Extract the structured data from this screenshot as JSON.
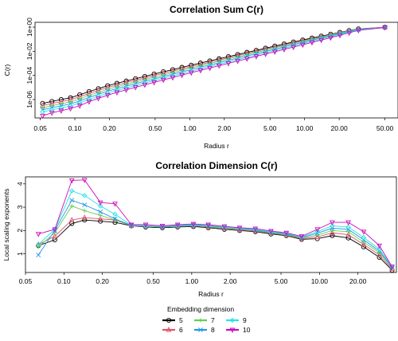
{
  "chart_data": [
    {
      "type": "line",
      "title": "Correlation Sum C(r)",
      "xlabel": "Radius r",
      "ylabel": "C(r)",
      "xscale": "log",
      "yscale": "log",
      "xlim": [
        0.045,
        65
      ],
      "ylim": [
        3e-08,
        2.5
      ],
      "x_ticks": [
        0.05,
        0.1,
        0.2,
        0.5,
        1,
        2,
        5,
        10,
        20,
        50
      ],
      "x_tick_labels": [
        "0.05",
        "0.10",
        "0.20",
        "0.50",
        "1.00",
        "2.00",
        "5.00",
        "10.00",
        "20.00",
        "50.00"
      ],
      "y_ticks": [
        1e-06,
        0.0001,
        0.01,
        1
      ],
      "y_tick_labels": [
        "1e-06",
        "1e-04",
        "1e-02",
        "1e+00"
      ],
      "x": [
        0.0524,
        0.0631,
        0.076,
        0.0916,
        0.1103,
        0.1329,
        0.1601,
        0.1929,
        0.2324,
        0.2799,
        0.3372,
        0.4062,
        0.4894,
        0.5895,
        0.7102,
        0.8555,
        1.0306,
        1.2415,
        1.4956,
        1.8017,
        2.1704,
        2.6146,
        3.1497,
        3.7943,
        4.5708,
        5.5062,
        6.633,
        7.9905,
        9.6257,
        11.5955,
        13.9686,
        16.8271,
        20.2709,
        24.4193,
        29.4167,
        50.0
      ],
      "series": [
        {
          "name": "5",
          "color": "#000000",
          "marker": "circle",
          "values": [
            4.8e-07,
            7e-07,
            1e-06,
            1.4e-06,
            2.5e-06,
            4.6e-06,
            8e-06,
            1.4e-05,
            2.2e-05,
            3.4e-05,
            5.3e-05,
            8.2e-05,
            0.00013,
            0.0002,
            0.0003,
            0.00046,
            0.0007,
            0.00106,
            0.0016,
            0.0024,
            0.0036,
            0.0054,
            0.0081,
            0.012,
            0.018,
            0.027,
            0.04,
            0.059,
            0.086,
            0.125,
            0.18,
            0.26,
            0.37,
            0.52,
            0.72,
            0.98
          ]
        },
        {
          "name": "6",
          "color": "#DF536B",
          "marker": "triangle",
          "values": [
            3.2e-07,
            4.7e-07,
            6.8e-07,
            9.6e-07,
            1.7e-06,
            3.2e-06,
            5.7e-06,
            1e-05,
            1.6e-05,
            2.5e-05,
            3.9e-05,
            6.1e-05,
            9.5e-05,
            0.00015,
            0.00023,
            0.00035,
            0.00054,
            0.00082,
            0.00125,
            0.0019,
            0.0029,
            0.0044,
            0.0066,
            0.01,
            0.015,
            0.023,
            0.034,
            0.051,
            0.075,
            0.11,
            0.16,
            0.24,
            0.35,
            0.5,
            0.7,
            0.97
          ]
        },
        {
          "name": "7",
          "color": "#61D04F",
          "marker": "plus",
          "values": [
            2.1e-07,
            3.1e-07,
            4.5e-07,
            6.4e-07,
            1.15e-06,
            2.2e-06,
            3.9e-06,
            7e-06,
            1.15e-05,
            1.8e-05,
            2.85e-05,
            4.5e-05,
            7e-05,
            0.00011,
            0.00017,
            0.000265,
            0.00041,
            0.00063,
            0.00097,
            0.0015,
            0.0023,
            0.0035,
            0.0053,
            0.0081,
            0.0125,
            0.019,
            0.029,
            0.044,
            0.066,
            0.098,
            0.145,
            0.22,
            0.33,
            0.48,
            0.68,
            0.96
          ]
        },
        {
          "name": "8",
          "color": "#2297E6",
          "marker": "x",
          "values": [
            1.4e-07,
            2.1e-07,
            3e-07,
            4.3e-07,
            7.7e-07,
            1.5e-06,
            2.7e-06,
            4.9e-06,
            8.1e-06,
            1.28e-05,
            2.05e-05,
            3.25e-05,
            5.1e-05,
            8.1e-05,
            0.000125,
            0.000195,
            0.000305,
            0.00047,
            0.00073,
            0.00113,
            0.00175,
            0.0027,
            0.0041,
            0.0063,
            0.0098,
            0.015,
            0.023,
            0.0355,
            0.054,
            0.082,
            0.125,
            0.19,
            0.29,
            0.44,
            0.64,
            0.95
          ]
        },
        {
          "name": "9",
          "color": "#28E2E5",
          "marker": "diamond",
          "values": [
            9.5e-08,
            1.4e-07,
            2e-07,
            2.9e-07,
            5.2e-07,
            1e-06,
            1.85e-06,
            3.4e-06,
            5.7e-06,
            9.1e-06,
            1.47e-05,
            2.35e-05,
            3.7e-05,
            5.9e-05,
            9.2e-05,
            0.000144,
            0.000226,
            0.00035,
            0.00055,
            0.00085,
            0.00132,
            0.00205,
            0.00315,
            0.0049,
            0.0076,
            0.0118,
            0.0182,
            0.0282,
            0.0435,
            0.067,
            0.103,
            0.16,
            0.25,
            0.39,
            0.59,
            0.94
          ]
        },
        {
          "name": "10",
          "color": "#CD0BBC",
          "marker": "triangle-down",
          "values": [
            4.5e-08,
            8e-08,
            1.2e-07,
            1.8e-07,
            3.1e-07,
            6.7e-07,
            1.25e-06,
            2.3e-06,
            3.9e-06,
            6.4e-06,
            1.04e-05,
            1.67e-05,
            2.65e-05,
            4.25e-05,
            6.7e-05,
            0.000106,
            0.000168,
            0.000263,
            0.00041,
            0.00064,
            0.001,
            0.00156,
            0.00242,
            0.00378,
            0.0059,
            0.0092,
            0.0143,
            0.0223,
            0.0345,
            0.054,
            0.084,
            0.132,
            0.21,
            0.34,
            0.54,
            0.93
          ]
        }
      ]
    },
    {
      "type": "line",
      "title": "Correlation Dimension C(r)",
      "xlabel": "Radius r",
      "ylabel": "Local scaling exponents",
      "xscale": "log",
      "xlim": [
        0.05,
        40
      ],
      "ylim": [
        0.2,
        4.3
      ],
      "x_ticks": [
        0.05,
        0.1,
        0.2,
        0.5,
        1,
        2,
        5,
        10,
        20
      ],
      "x_tick_labels": [
        "0.05",
        "0.10",
        "0.20",
        "0.50",
        "1.00",
        "2.00",
        "5.00",
        "10.00",
        "20.00"
      ],
      "y_ticks": [
        1,
        2,
        3,
        4
      ],
      "y_tick_labels": [
        "1",
        "2",
        "3",
        "4"
      ],
      "x": [
        0.0631,
        0.0848,
        0.1153,
        0.145,
        0.1929,
        0.2512,
        0.3372,
        0.4365,
        0.5895,
        0.7762,
        1.0306,
        1.349,
        1.8017,
        2.3714,
        3.1497,
        4.1687,
        5.5062,
        7.2444,
        9.6257,
        12.5893,
        16.8271,
        22.182,
        29.4167,
        37.0
      ],
      "series": [
        {
          "name": "5",
          "color": "#000000",
          "marker": "circle",
          "values": [
            1.35,
            1.6,
            2.3,
            2.45,
            2.4,
            2.35,
            2.2,
            2.15,
            2.12,
            2.15,
            2.17,
            2.12,
            2.05,
            2.0,
            1.95,
            1.85,
            1.78,
            1.62,
            1.65,
            1.78,
            1.68,
            1.3,
            0.85,
            0.3
          ]
        },
        {
          "name": "6",
          "color": "#DF536B",
          "marker": "triangle",
          "values": [
            1.4,
            1.75,
            2.45,
            2.55,
            2.5,
            2.45,
            2.2,
            2.18,
            2.15,
            2.18,
            2.2,
            2.15,
            2.08,
            2.02,
            1.98,
            1.88,
            1.8,
            1.65,
            1.72,
            1.9,
            1.82,
            1.4,
            0.95,
            0.35
          ]
        },
        {
          "name": "7",
          "color": "#61D04F",
          "marker": "plus",
          "values": [
            1.3,
            1.9,
            3.05,
            2.85,
            2.65,
            2.45,
            2.22,
            2.18,
            2.15,
            2.18,
            2.2,
            2.17,
            2.1,
            2.05,
            2.0,
            1.9,
            1.82,
            1.68,
            1.8,
            2.0,
            1.95,
            1.5,
            1.05,
            0.4
          ]
        },
        {
          "name": "8",
          "color": "#2297E6",
          "marker": "x",
          "values": [
            0.95,
            2.0,
            3.3,
            3.1,
            2.8,
            2.5,
            2.22,
            2.2,
            2.16,
            2.2,
            2.22,
            2.2,
            2.13,
            2.08,
            2.02,
            1.92,
            1.85,
            1.7,
            1.88,
            2.1,
            2.05,
            1.6,
            1.12,
            0.42
          ]
        },
        {
          "name": "9",
          "color": "#28E2E5",
          "marker": "diamond",
          "values": [
            1.4,
            2.05,
            3.7,
            3.5,
            3.05,
            2.7,
            2.22,
            2.2,
            2.18,
            2.22,
            2.25,
            2.22,
            2.15,
            2.1,
            2.05,
            1.95,
            1.88,
            1.72,
            1.95,
            2.2,
            2.15,
            1.7,
            1.2,
            0.45
          ]
        },
        {
          "name": "10",
          "color": "#CD0BBC",
          "marker": "triangle-down",
          "values": [
            1.85,
            2.05,
            4.15,
            4.17,
            3.2,
            3.15,
            2.25,
            2.25,
            2.2,
            2.25,
            2.28,
            2.25,
            2.18,
            2.12,
            2.08,
            1.98,
            1.9,
            1.75,
            2.05,
            2.35,
            2.35,
            1.95,
            1.35,
            0.45
          ]
        }
      ]
    }
  ],
  "legend": {
    "title": "Embedding dimension",
    "items": [
      {
        "label": "5",
        "color": "#000000",
        "marker": "circle"
      },
      {
        "label": "6",
        "color": "#DF536B",
        "marker": "triangle"
      },
      {
        "label": "7",
        "color": "#61D04F",
        "marker": "plus"
      },
      {
        "label": "8",
        "color": "#2297E6",
        "marker": "x"
      },
      {
        "label": "9",
        "color": "#28E2E5",
        "marker": "diamond"
      },
      {
        "label": "10",
        "color": "#CD0BBC",
        "marker": "triangle-down"
      }
    ]
  }
}
